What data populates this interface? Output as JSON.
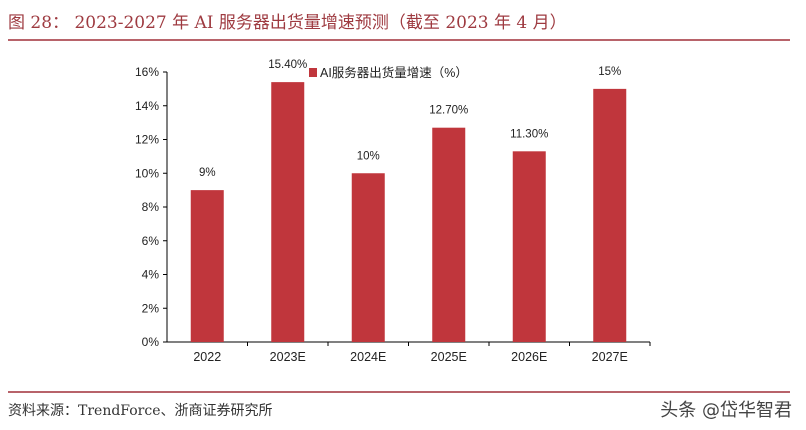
{
  "header": {
    "title": "图 28：  2023-2027 年 AI 服务器出货量增速预测（截至 2023 年 4 月）"
  },
  "footer": {
    "source": "资料来源：TrendForce、浙商证券研究所",
    "watermark": "头条 @岱华智君"
  },
  "colors": {
    "bar": "#c0363c",
    "title": "#9e3a40",
    "rule": "#b8636a"
  },
  "chart_data": {
    "type": "bar",
    "categories": [
      "2022",
      "2023E",
      "2024E",
      "2025E",
      "2026E",
      "2027E"
    ],
    "series": [
      {
        "name": "AI服务器出货量增速（%）",
        "values": [
          9,
          15.4,
          10,
          12.7,
          11.3,
          15
        ]
      }
    ],
    "data_labels": [
      "9%",
      "15.40%",
      "10%",
      "12.70%",
      "11.30%",
      "15%"
    ],
    "yticks": [
      "0%",
      "2%",
      "4%",
      "6%",
      "8%",
      "10%",
      "12%",
      "14%",
      "16%"
    ],
    "ylim": [
      0,
      16
    ],
    "grid": false,
    "legend": "top-center"
  }
}
